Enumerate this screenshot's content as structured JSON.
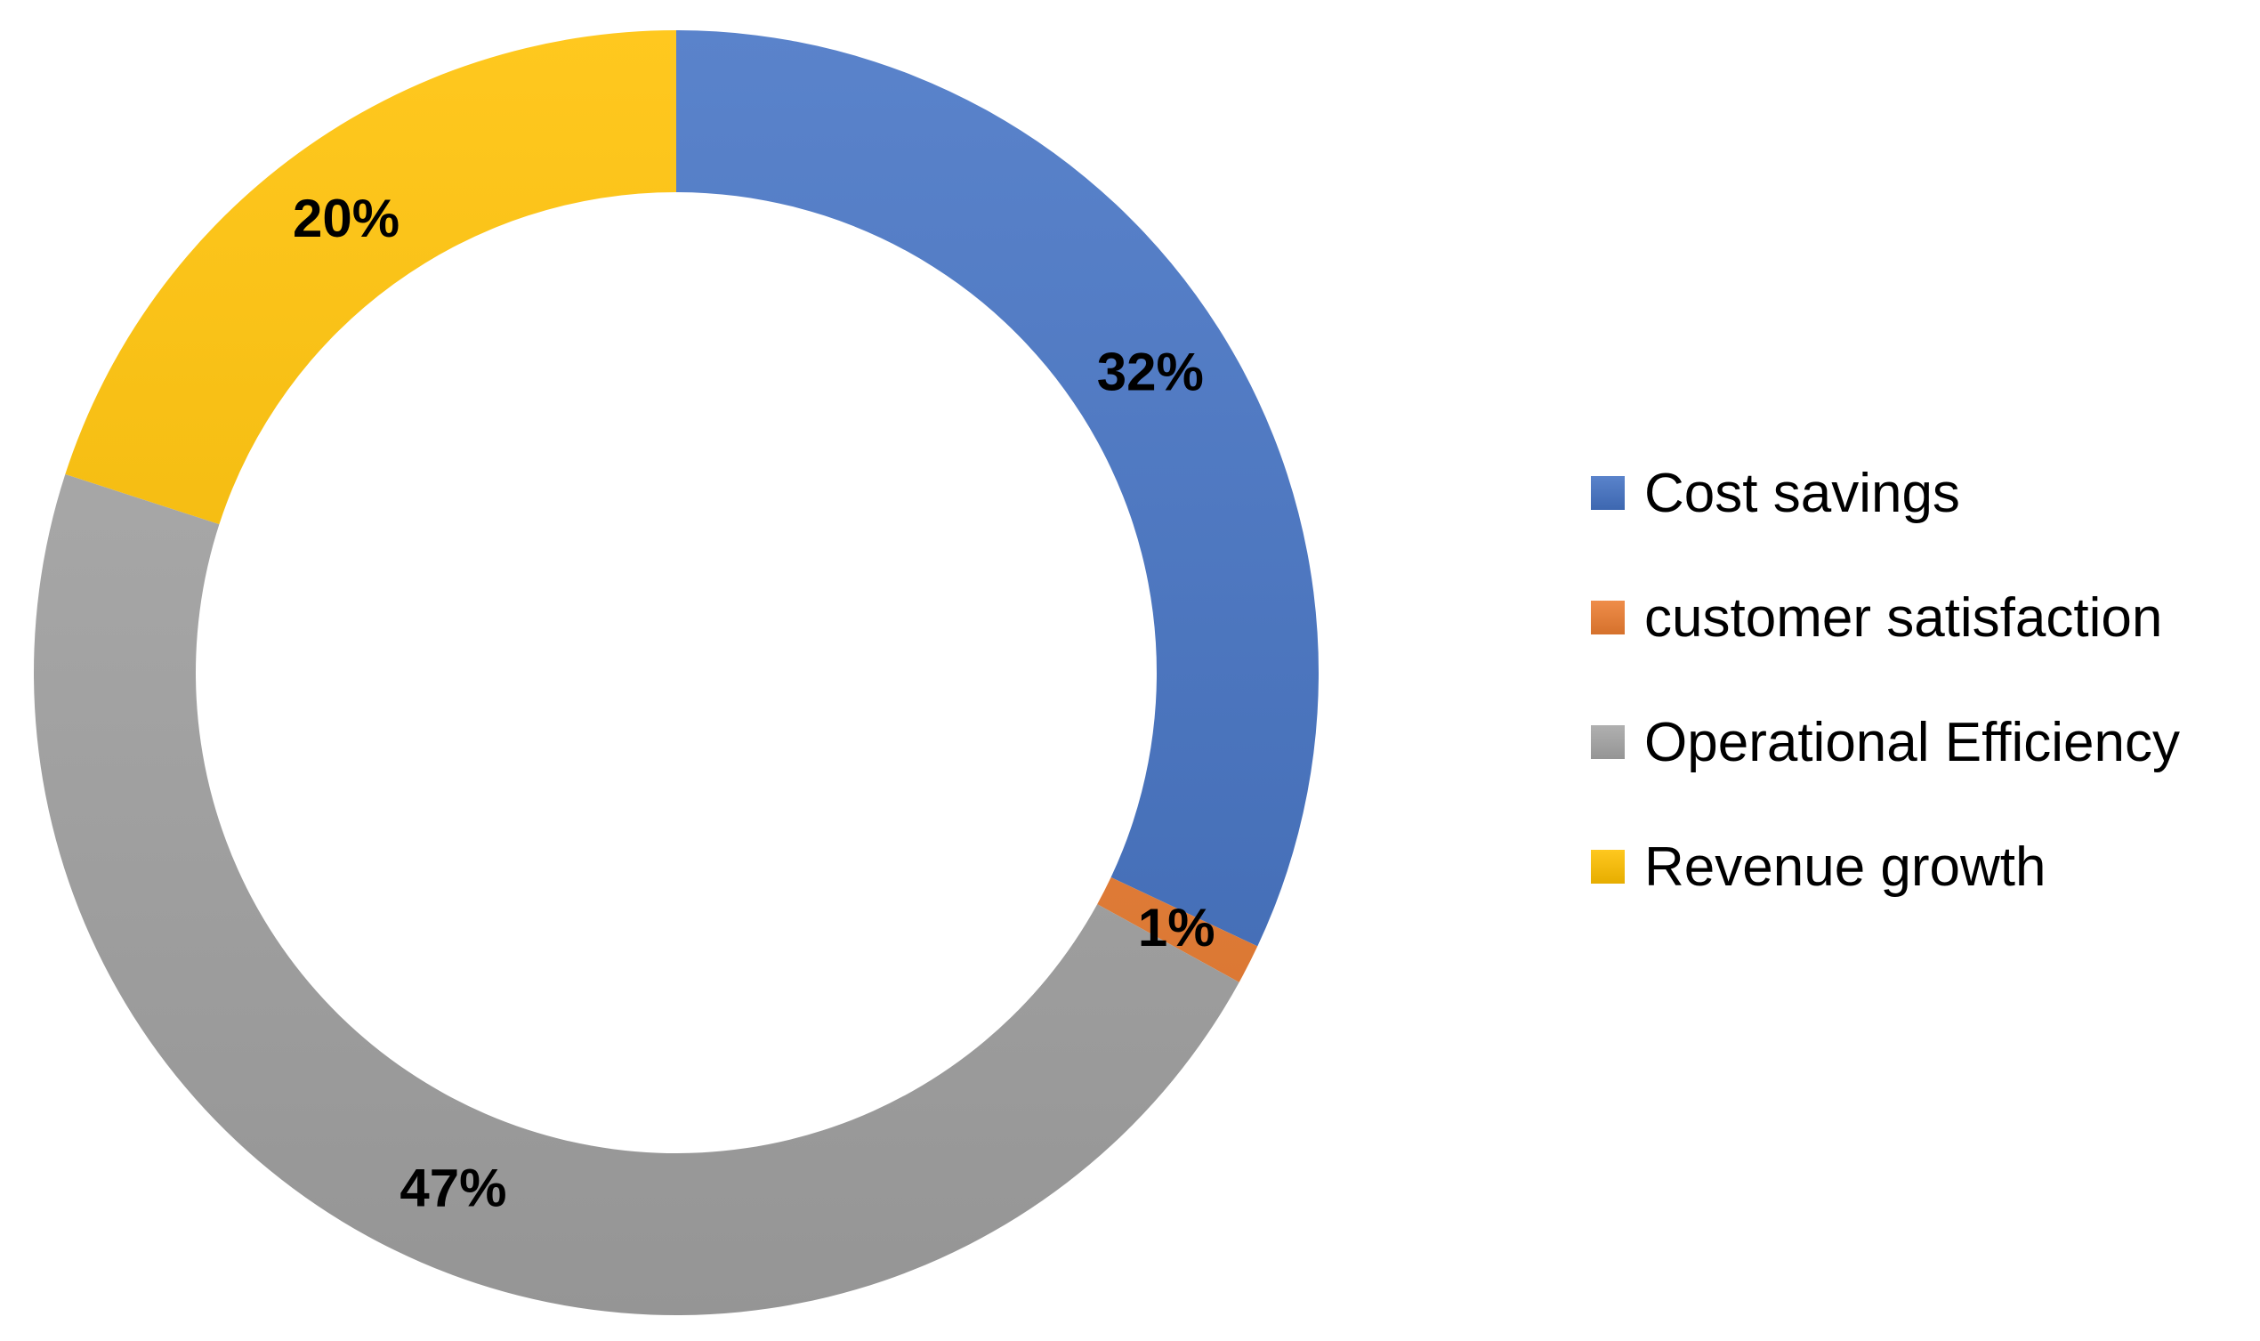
{
  "chart_data": {
    "type": "pie",
    "variant": "donut",
    "title": "",
    "categories": [
      "Cost savings",
      "customer satisfaction",
      "Operational Efficiency",
      "Revenue growth"
    ],
    "values": [
      32,
      1,
      47,
      20
    ],
    "labels": [
      "32%",
      "1%",
      "47%",
      "20%"
    ],
    "colors": [
      "#4472C4",
      "#ED7D31",
      "#A5A5A5",
      "#FFC000"
    ],
    "legend_position": "right"
  }
}
